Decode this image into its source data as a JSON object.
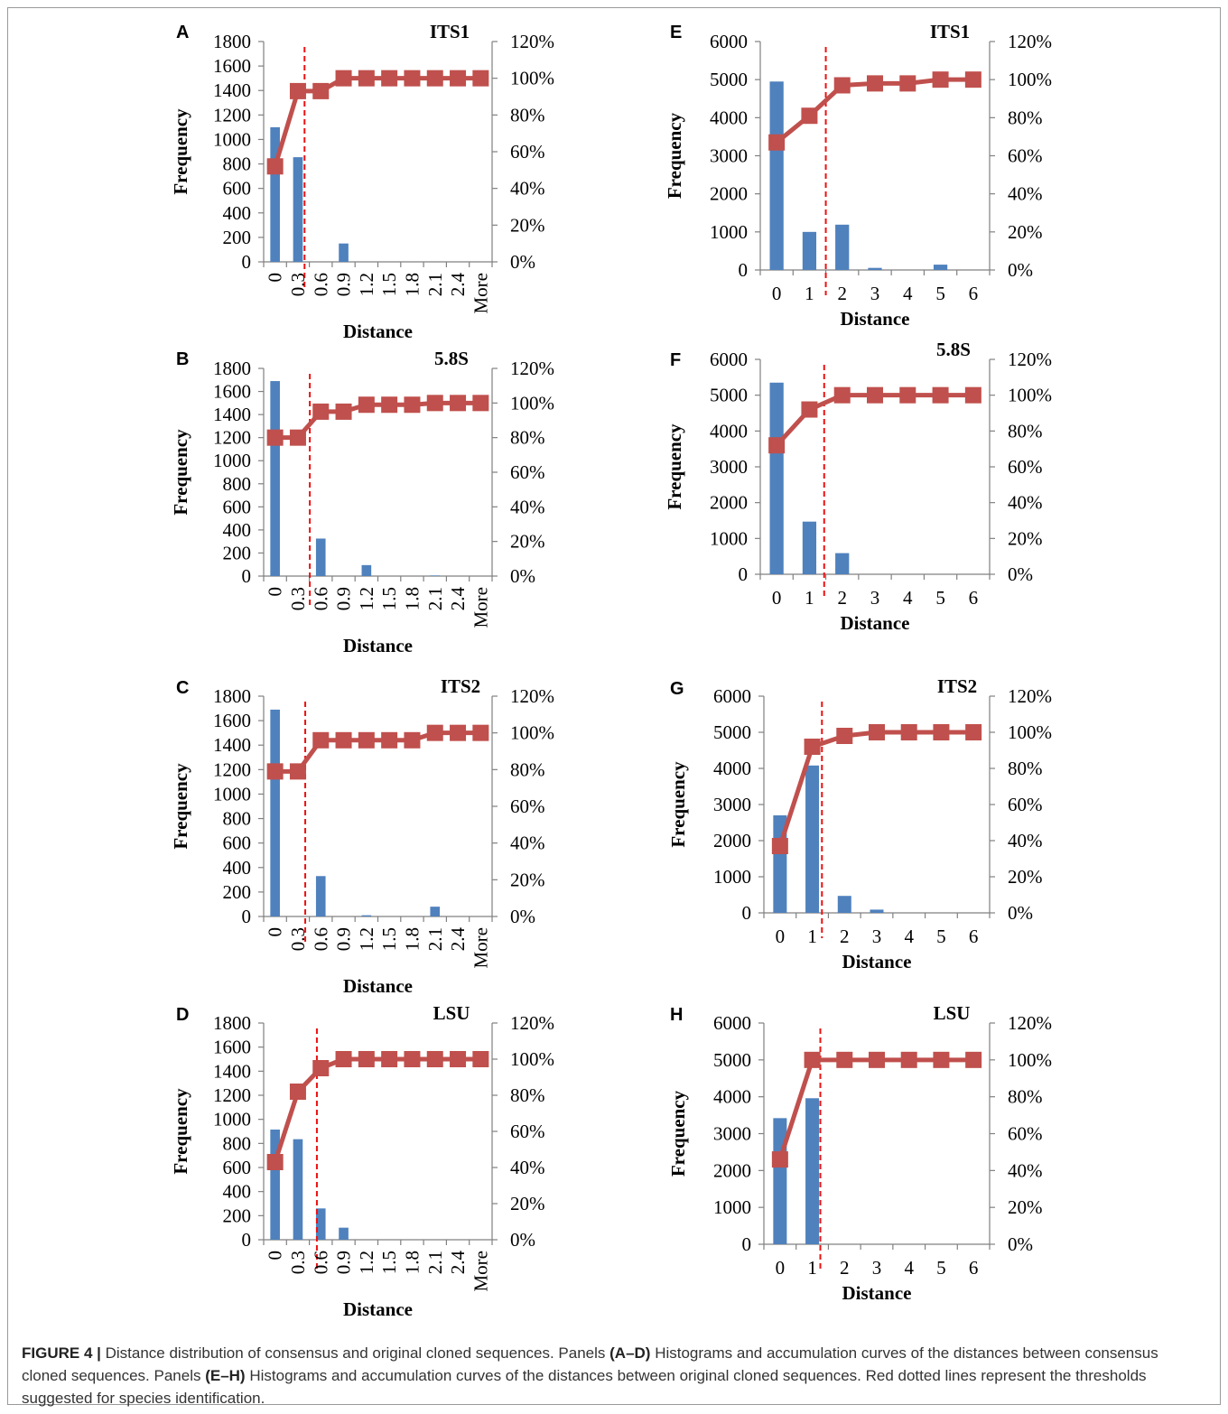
{
  "chart_data": [
    {
      "panel": "A",
      "type": "bar+line",
      "title": "ITS1",
      "categories": [
        "0",
        "0.3",
        "0.6",
        "0.9",
        "1.2",
        "1.5",
        "1.8",
        "2.1",
        "2.4",
        "More"
      ],
      "bars": [
        1100,
        855,
        0,
        150,
        0,
        0,
        0,
        0,
        0,
        0
      ],
      "cumulative": [
        52,
        93,
        93,
        100,
        100,
        100,
        100,
        100,
        100,
        100
      ],
      "threshold": 1.29,
      "xlabel": "Distance",
      "ylabel": "Frequency",
      "ylim": [
        0,
        1800
      ],
      "yticks": [
        "0",
        "200",
        "400",
        "600",
        "800",
        "1000",
        "1200",
        "1400",
        "1600",
        "1800"
      ],
      "y2ticks": [
        "0%",
        "20%",
        "40%",
        "60%",
        "80%",
        "100%",
        "120%"
      ]
    },
    {
      "panel": "B",
      "type": "bar+line",
      "title": "5.8S",
      "categories": [
        "0",
        "0.3",
        "0.6",
        "0.9",
        "1.2",
        "1.5",
        "1.8",
        "2.1",
        "2.4",
        "More"
      ],
      "bars": [
        1690,
        0,
        325,
        0,
        95,
        0,
        0,
        5,
        0,
        0
      ],
      "cumulative": [
        80,
        80,
        95,
        95,
        99,
        99,
        99,
        100,
        100,
        100
      ],
      "threshold": 1.52,
      "xlabel": "Distance",
      "ylabel": "Frequency",
      "ylim": [
        0,
        1800
      ],
      "yticks": [
        "0",
        "200",
        "400",
        "600",
        "800",
        "1000",
        "1200",
        "1400",
        "1600",
        "1800"
      ],
      "y2ticks": [
        "0%",
        "20%",
        "40%",
        "60%",
        "80%",
        "100%",
        "120%"
      ]
    },
    {
      "panel": "C",
      "type": "bar+line",
      "title": "ITS2",
      "categories": [
        "0",
        "0.3",
        "0.6",
        "0.9",
        "1.2",
        "1.5",
        "1.8",
        "2.1",
        "2.4",
        "More"
      ],
      "bars": [
        1690,
        0,
        330,
        0,
        10,
        0,
        0,
        80,
        0,
        0
      ],
      "cumulative": [
        79,
        79,
        96,
        96,
        96,
        96,
        96,
        100,
        100,
        100
      ],
      "threshold": 1.32,
      "xlabel": "Distance",
      "ylabel": "Frequency",
      "ylim": [
        0,
        1800
      ],
      "yticks": [
        "0",
        "200",
        "400",
        "600",
        "800",
        "1000",
        "1200",
        "1400",
        "1600",
        "1800"
      ],
      "y2ticks": [
        "0%",
        "20%",
        "40%",
        "60%",
        "80%",
        "100%",
        "120%"
      ]
    },
    {
      "panel": "D",
      "type": "bar+line",
      "title": "LSU",
      "categories": [
        "0",
        "0.3",
        "0.6",
        "0.9",
        "1.2",
        "1.5",
        "1.8",
        "2.1",
        "2.4",
        "More"
      ],
      "bars": [
        915,
        835,
        260,
        100,
        0,
        0,
        0,
        0,
        0,
        0
      ],
      "cumulative": [
        43,
        82,
        95,
        100,
        100,
        100,
        100,
        100,
        100,
        100
      ],
      "threshold": 1.83,
      "xlabel": "Distance",
      "ylabel": "Frequency",
      "ylim": [
        0,
        1800
      ],
      "yticks": [
        "0",
        "200",
        "400",
        "600",
        "800",
        "1000",
        "1200",
        "1400",
        "1600",
        "1800"
      ],
      "y2ticks": [
        "0%",
        "20%",
        "40%",
        "60%",
        "80%",
        "100%",
        "120%"
      ]
    },
    {
      "panel": "E",
      "type": "bar+line",
      "title": "ITS1",
      "categories": [
        "0",
        "1",
        "2",
        "3",
        "4",
        "5",
        "6"
      ],
      "bars": [
        4950,
        1000,
        1190,
        55,
        0,
        140,
        0
      ],
      "cumulative": [
        67,
        81,
        97,
        98,
        98,
        100,
        100
      ],
      "threshold": 1.5,
      "xlabel": "Distance",
      "ylabel": "Frequency",
      "ylim": [
        0,
        6000
      ],
      "yticks": [
        "0",
        "1000",
        "2000",
        "3000",
        "4000",
        "5000",
        "6000"
      ],
      "y2ticks": [
        "0%",
        "20%",
        "40%",
        "60%",
        "80%",
        "100%",
        "120%"
      ]
    },
    {
      "panel": "F",
      "type": "bar+line",
      "title": "5.8S",
      "categories": [
        "0",
        "1",
        "2",
        "3",
        "4",
        "5",
        "6"
      ],
      "bars": [
        5350,
        1470,
        590,
        0,
        0,
        0,
        0
      ],
      "cumulative": [
        72,
        92,
        100,
        100,
        100,
        100,
        100
      ],
      "threshold": 1.45,
      "xlabel": "Distance",
      "ylabel": "Frequency",
      "ylim": [
        0,
        6000
      ],
      "yticks": [
        "0",
        "1000",
        "2000",
        "3000",
        "4000",
        "5000",
        "6000"
      ],
      "y2ticks": [
        "0%",
        "20%",
        "40%",
        "60%",
        "80%",
        "100%",
        "120%"
      ]
    },
    {
      "panel": "G",
      "type": "bar+line",
      "title": "ITS2",
      "categories": [
        "0",
        "1",
        "2",
        "3",
        "4",
        "5",
        "6"
      ],
      "bars": [
        2700,
        4080,
        470,
        90,
        0,
        0,
        0
      ],
      "cumulative": [
        37,
        92,
        98,
        100,
        100,
        100,
        100
      ],
      "threshold": 1.3,
      "xlabel": "Distance",
      "ylabel": "Frequency",
      "ylim": [
        0,
        6000
      ],
      "yticks": [
        "0",
        "1000",
        "2000",
        "3000",
        "4000",
        "5000",
        "6000"
      ],
      "y2ticks": [
        "0%",
        "20%",
        "40%",
        "60%",
        "80%",
        "100%",
        "120%"
      ]
    },
    {
      "panel": "H",
      "type": "bar+line",
      "title": "LSU",
      "categories": [
        "0",
        "1",
        "2",
        "3",
        "4",
        "5",
        "6"
      ],
      "bars": [
        3420,
        3960,
        0,
        0,
        0,
        0,
        0
      ],
      "cumulative": [
        46,
        100,
        100,
        100,
        100,
        100,
        100
      ],
      "threshold": 1.25,
      "xlabel": "Distance",
      "ylabel": "Frequency",
      "ylim": [
        0,
        6000
      ],
      "yticks": [
        "0",
        "1000",
        "2000",
        "3000",
        "4000",
        "5000",
        "6000"
      ],
      "y2ticks": [
        "0%",
        "20%",
        "40%",
        "60%",
        "80%",
        "100%",
        "120%"
      ]
    }
  ],
  "caption": {
    "figure_label": "FIGURE 4 |",
    "text_1": " Distance distribution of consensus and original cloned sequences. Panels ",
    "panels_1": "(A–D)",
    "text_2": " Histograms and accumulation curves of the distances between consensus cloned sequences. Panels ",
    "panels_2": "(E–H)",
    "text_3": " Histograms and accumulation curves of the distances between original cloned sequences. Red dotted lines represent the thresholds suggested for species identification."
  },
  "colors": {
    "bar": "#4f81bd",
    "line": "#c0504d",
    "threshold": "#ee1111"
  }
}
